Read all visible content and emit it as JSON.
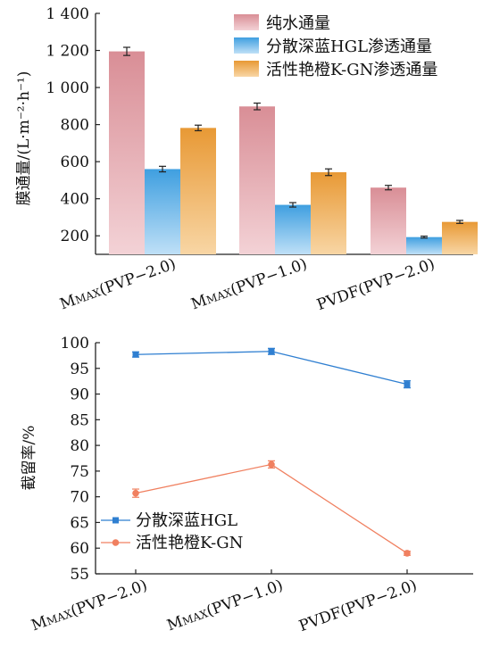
{
  "chart_data": [
    {
      "type": "bar",
      "ylabel": "膜通量/(L·m⁻²·h⁻¹)",
      "ylim": [
        100,
        1400
      ],
      "yticks": [
        200,
        400,
        600,
        800,
        1000,
        1200,
        1400
      ],
      "ytick_labels": [
        "200",
        "400",
        "600",
        "800",
        "1 000",
        "1 200",
        "1 400"
      ],
      "categories": [
        "MMAX(PVP−2.0)",
        "MMAX(PVP−1.0)",
        "PVDF(PVP−2.0)"
      ],
      "category_labels": [
        {
          "main": "M",
          "sub": "MAX",
          "rest": "(PVP−2.0)"
        },
        {
          "main": "M",
          "sub": "MAX",
          "rest": "(PVP−1.0)"
        },
        {
          "main": "",
          "sub": "",
          "rest": "PVDF(PVP−2.0)"
        }
      ],
      "legend_position": "top-right",
      "series": [
        {
          "name": "纯水通量",
          "values": [
            1195,
            898,
            460
          ],
          "errors": [
            22,
            18,
            12
          ],
          "color_top": "#d98e96",
          "color_bottom": "#f3d2d6"
        },
        {
          "name": "分散深蓝HGL渗透通量",
          "values": [
            560,
            367,
            193
          ],
          "errors": [
            15,
            12,
            5
          ],
          "color_top": "#3f9fe0",
          "color_bottom": "#bfe0f7"
        },
        {
          "name": "活性艳橙K-GN渗透通量",
          "values": [
            782,
            543,
            275
          ],
          "errors": [
            15,
            18,
            8
          ],
          "color_top": "#e89935",
          "color_bottom": "#f8d6a5"
        }
      ]
    },
    {
      "type": "line",
      "ylabel": "截留率/%",
      "ylim": [
        55,
        100
      ],
      "yticks": [
        55,
        60,
        65,
        70,
        75,
        80,
        85,
        90,
        95,
        100
      ],
      "categories": [
        "MMAX(PVP−2.0)",
        "MMAX(PVP−1.0)",
        "PVDF(PVP−2.0)"
      ],
      "category_labels": [
        {
          "main": "M",
          "sub": "MAX",
          "rest": "(PVP−2.0)"
        },
        {
          "main": "M",
          "sub": "MAX",
          "rest": "(PVP−1.0)"
        },
        {
          "main": "",
          "sub": "",
          "rest": "PVDF(PVP−2.0)"
        }
      ],
      "legend_position": "bottom-left",
      "series": [
        {
          "name": "分散深蓝HGL",
          "values": [
            97.7,
            98.3,
            91.9
          ],
          "errors": [
            0.5,
            0.6,
            0.7
          ],
          "color": "#2f7fd1",
          "marker": "square"
        },
        {
          "name": "活性艳橙K-GN",
          "values": [
            70.7,
            76.3,
            59.0
          ],
          "errors": [
            0.8,
            0.7,
            0.4
          ],
          "color": "#f08060",
          "marker": "circle"
        }
      ]
    }
  ]
}
